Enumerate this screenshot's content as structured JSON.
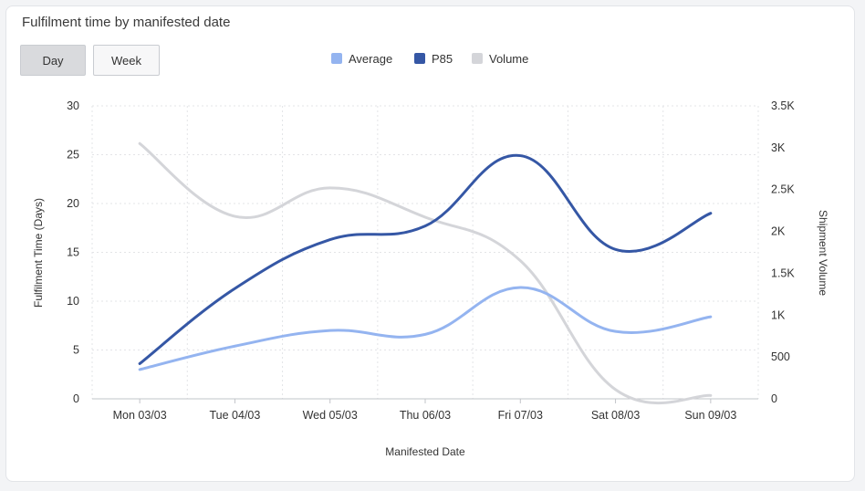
{
  "card": {
    "title": "Fulfilment time by manifested date"
  },
  "toggle": {
    "day_label": "Day",
    "week_label": "Week",
    "selected": "Day"
  },
  "chart_data": {
    "type": "line",
    "title": "Fulfilment time by manifested date",
    "categories": [
      "Mon 03/03",
      "Tue 04/03",
      "Wed 05/03",
      "Thu 06/03",
      "Fri 07/03",
      "Sat 08/03",
      "Sun 09/03"
    ],
    "xlabel": "Manifested Date",
    "ylabel": "Fulfilment Time (Days)",
    "ylabel_right": "Shipment Volume",
    "ylim": [
      0,
      30
    ],
    "ylim_right": [
      0,
      3500
    ],
    "y_ticks": [
      "0",
      "5",
      "10",
      "15",
      "20",
      "25",
      "30"
    ],
    "y_right_ticks": [
      "0",
      "500",
      "1K",
      "1.5K",
      "2K",
      "2.5K",
      "3K",
      "3.5K"
    ],
    "grid": true,
    "legend_position": "top-center",
    "series": [
      {
        "name": "Average",
        "axis": "left",
        "color": "#94b4f0",
        "values": [
          3.0,
          5.4,
          7.0,
          6.6,
          11.4,
          6.9,
          8.4
        ]
      },
      {
        "name": "P85",
        "axis": "left",
        "color": "#3557a5",
        "values": [
          3.6,
          11.3,
          16.3,
          17.7,
          24.9,
          15.3,
          19.0
        ]
      },
      {
        "name": "Volume",
        "axis": "right",
        "color": "#d4d5d9",
        "values": [
          3050,
          2180,
          2520,
          2170,
          1650,
          110,
          40
        ]
      }
    ]
  }
}
